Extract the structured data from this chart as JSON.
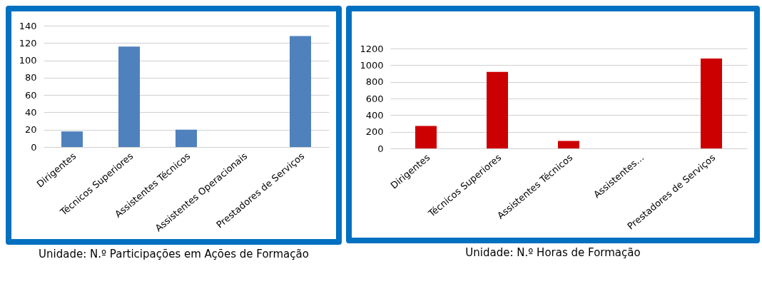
{
  "chart_data": [
    {
      "type": "bar",
      "categories": [
        "Dirigentes",
        "Técnicos Superiores",
        "Assistentes Técnicos",
        "Assistentes Operacionais",
        "Prestadores  de Serviços"
      ],
      "values": [
        18,
        116,
        20,
        0,
        128
      ],
      "color": "#4f81bd",
      "ylim": [
        0,
        140
      ],
      "yticks": [
        0,
        20,
        40,
        60,
        80,
        100,
        120,
        140
      ],
      "grid": "y",
      "annotations": [
        "Unidade: N.º Participações em Ações de Formação"
      ]
    },
    {
      "type": "bar",
      "categories": [
        "Dirigentes",
        "Técnicos Superiores",
        "Assistentes Técnicos",
        "Assistentes…",
        "Prestadores de Serviços"
      ],
      "values": [
        270,
        920,
        90,
        0,
        1080
      ],
      "color": "#cc0000",
      "ylim": [
        0,
        1200
      ],
      "yticks": [
        0,
        200,
        400,
        600,
        800,
        1000,
        1200
      ],
      "grid": "y",
      "annotations": [
        "Unidade: N.º Horas de Formação"
      ]
    }
  ]
}
